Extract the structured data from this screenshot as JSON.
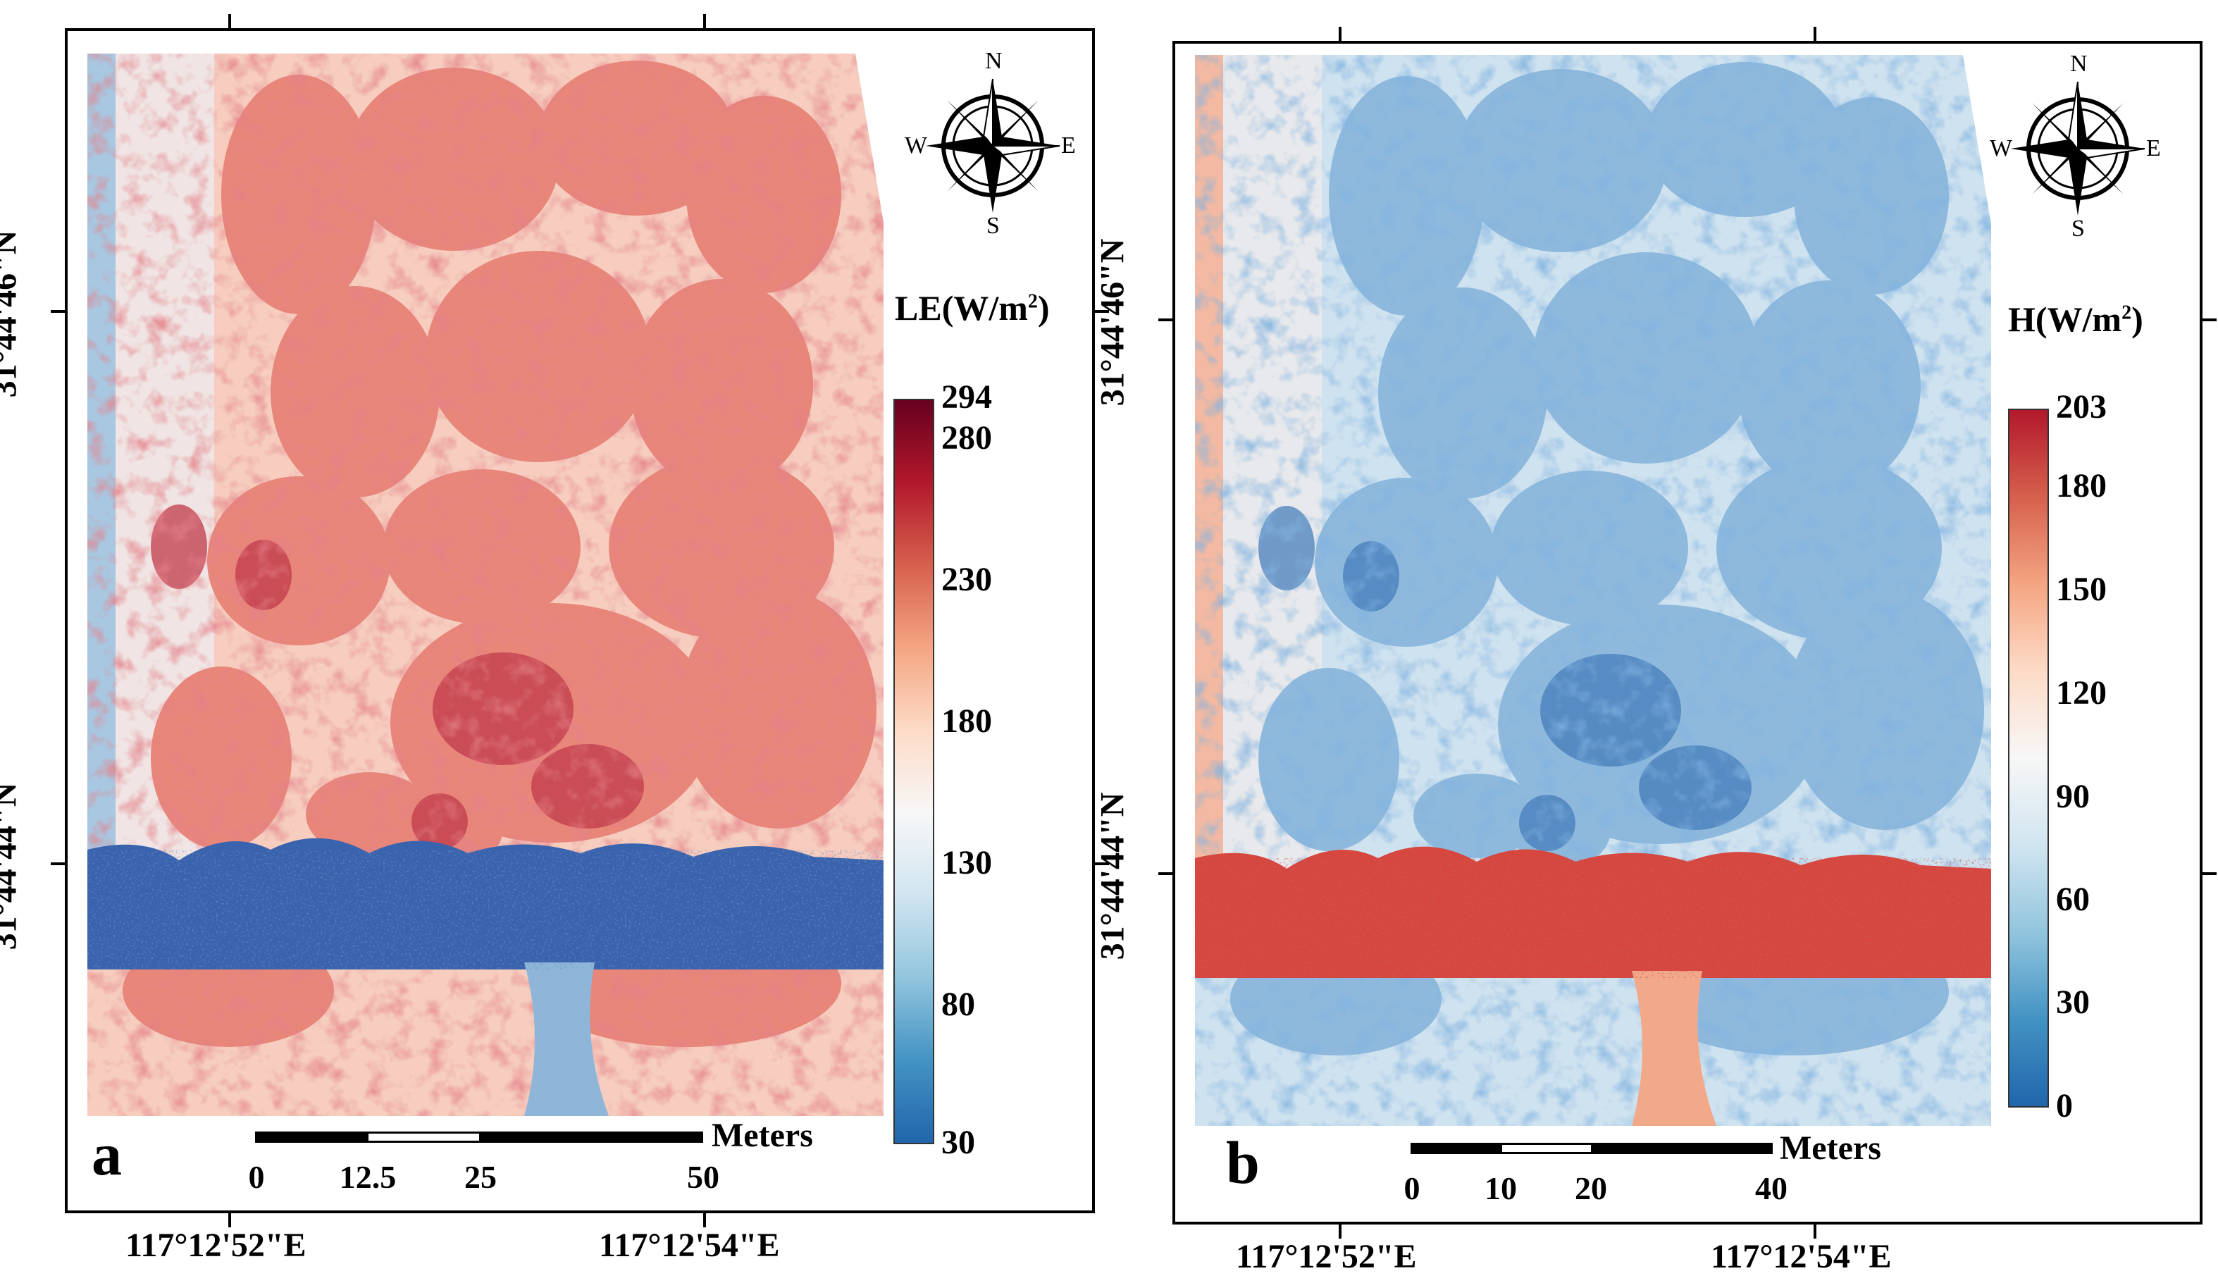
{
  "panels": [
    {
      "letter": "a",
      "colorbar": {
        "title_main": "LE(W/m",
        "title_sup": "2",
        "title_end": ")",
        "ticks": [
          "294",
          "280",
          "230",
          "180",
          "130",
          "80",
          "30"
        ],
        "gradient": [
          "#67001f",
          "#b2182b",
          "#d6604d",
          "#f4a582",
          "#fddbc7",
          "#f7f7f7",
          "#d1e5f0",
          "#92c5de",
          "#4393c3",
          "#2166ac"
        ]
      },
      "lon_labels": [
        "117°12'52\"E",
        "117°12'54\"E"
      ],
      "lat_labels": [
        "31°44'46\"N",
        "31°44'44\"N"
      ],
      "scale": {
        "labels": [
          "0",
          "12.5",
          "25",
          "50"
        ],
        "unit": "Meters"
      },
      "compass": {
        "n": "N",
        "s": "S",
        "e": "E",
        "w": "W"
      }
    },
    {
      "letter": "b",
      "colorbar": {
        "title_main": "H(W/m",
        "title_sup": "2",
        "title_end": ")",
        "ticks": [
          "203",
          "180",
          "150",
          "120",
          "90",
          "60",
          "30",
          "0"
        ],
        "gradient": [
          "#b2182b",
          "#d6604d",
          "#f4a582",
          "#fddbc7",
          "#f7f7f7",
          "#d1e5f0",
          "#92c5de",
          "#4393c3",
          "#2166ac"
        ]
      },
      "lon_labels": [
        "117°12'52\"E",
        "117°12'54\"E"
      ],
      "lat_labels": [
        "31°44'46\"N",
        "31°44'44\"N"
      ],
      "scale": {
        "labels": [
          "0",
          "10",
          "20",
          "40"
        ],
        "unit": "Meters"
      },
      "compass": {
        "n": "N",
        "s": "S",
        "e": "E",
        "w": "W"
      }
    }
  ],
  "colors": {
    "le_background": "#f6cdbf",
    "le_canopy": "#e8867a",
    "le_canopy_dark": "#c0394a",
    "le_water": "#3a63ad",
    "le_channel": "#8fb6d8",
    "le_border": "#a8c8e2",
    "h_background": "#cfe2ef",
    "h_canopy": "#8fb9dc",
    "h_canopy_dark": "#3f78b8",
    "h_water": "#d5473f",
    "h_channel": "#f2a98a",
    "h_border": "#f3b9a2"
  }
}
